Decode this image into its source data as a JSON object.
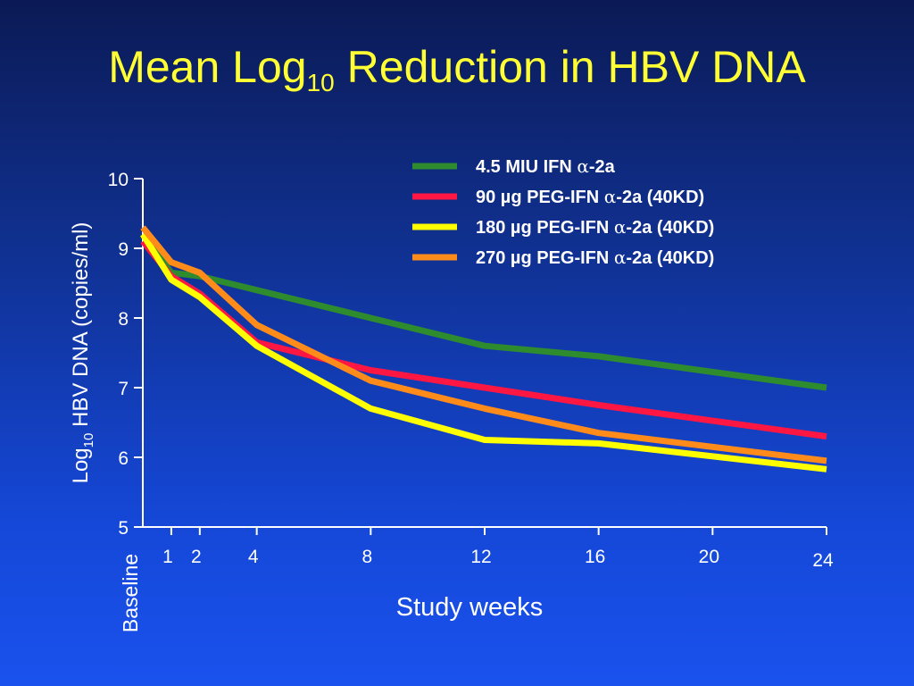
{
  "slide": {
    "title_main": "Mean Log",
    "title_sub": "10",
    "title_rest": " Reduction in HBV DNA"
  },
  "chart_data": {
    "type": "line",
    "title": "Mean Log10 Reduction in HBV DNA",
    "xlabel": "Study weeks",
    "ylabel": {
      "prefix": "Log",
      "sub": "10",
      "rest": " HBV DNA (copies/ml)"
    },
    "baseline_label": "Baseline",
    "x_ticks": [
      1,
      2,
      4,
      8,
      12,
      16,
      20,
      24
    ],
    "y_ticks": [
      5,
      6,
      7,
      8,
      9,
      10
    ],
    "xlim": [
      0,
      24
    ],
    "ylim": [
      5,
      10
    ],
    "grid": false,
    "legend_position": "top-right",
    "x": [
      0,
      1,
      2,
      4,
      8,
      12,
      16,
      24
    ],
    "series": [
      {
        "name": "4.5 MIU IFN α-2a",
        "name_prefix": "4.5 MIU IFN ",
        "name_greek": "α",
        "name_suffix": "-2a",
        "color": "#2e8b2e",
        "values": [
          9.2,
          8.65,
          8.6,
          8.4,
          8.0,
          7.6,
          7.45,
          7.0
        ]
      },
      {
        "name": "90 µg PEG-IFN α-2a (40KD)",
        "name_prefix": "90 µg PEG-IFN ",
        "name_greek": "α",
        "name_suffix": "-2a (40KD)",
        "color": "#ff1744",
        "values": [
          9.1,
          8.6,
          8.35,
          7.65,
          7.25,
          7.0,
          6.75,
          6.3
        ]
      },
      {
        "name": "180 µg PEG-IFN α-2a (40KD)",
        "name_prefix": "180 µg PEG-IFN ",
        "name_greek": "α",
        "name_suffix": "-2a (40KD)",
        "color": "#ffff00",
        "values": [
          9.2,
          8.55,
          8.3,
          7.6,
          6.7,
          6.25,
          6.2,
          5.83
        ]
      },
      {
        "name": "270 µg PEG-IFN α-2a (40KD)",
        "name_prefix": "270 µg PEG-IFN ",
        "name_greek": "α",
        "name_suffix": "-2a (40KD)",
        "color": "#ff8c1a",
        "values": [
          9.3,
          8.8,
          8.65,
          7.9,
          7.1,
          6.7,
          6.35,
          5.95
        ]
      }
    ]
  }
}
